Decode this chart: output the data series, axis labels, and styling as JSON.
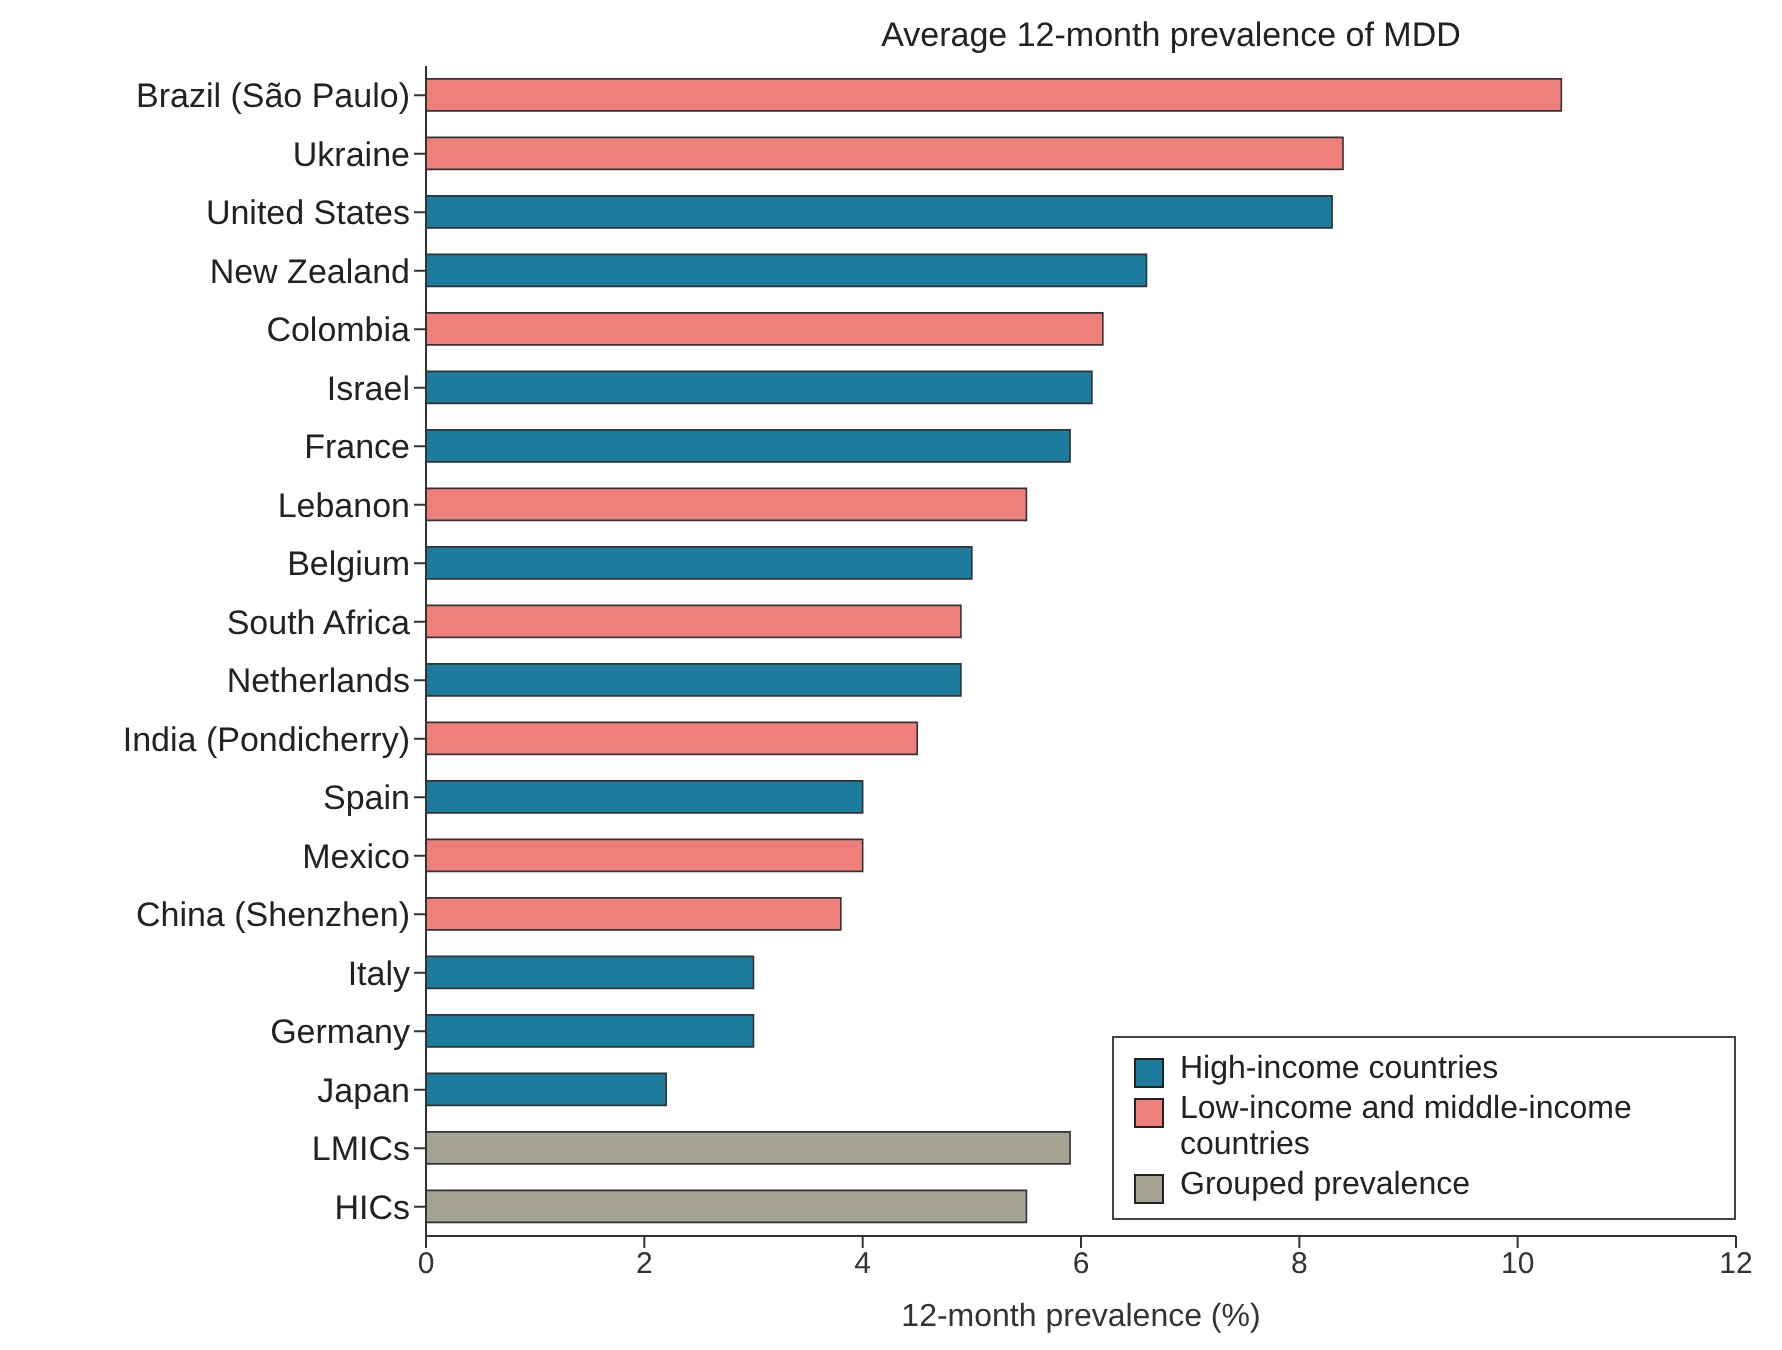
{
  "chart_data": {
    "type": "bar",
    "orientation": "horizontal",
    "title": "Average 12-month prevalence of MDD",
    "xlabel": "12-month prevalence (%)",
    "categories": [
      "Brazil (São Paulo)",
      "Ukraine",
      "United States",
      "New Zealand",
      "Colombia",
      "Israel",
      "France",
      "Lebanon",
      "Belgium",
      "South Africa",
      "Netherlands",
      "India (Pondicherry)",
      "Spain",
      "Mexico",
      "China (Shenzhen)",
      "Italy",
      "Germany",
      "Japan",
      "LMICs",
      "HICs"
    ],
    "series": [
      {
        "name": "High-income countries",
        "color": "#1b7c9e",
        "values": [
          null,
          null,
          8.3,
          6.6,
          null,
          6.1,
          5.9,
          null,
          5.0,
          null,
          4.9,
          null,
          4.0,
          null,
          null,
          3.0,
          3.0,
          2.2,
          null,
          null
        ]
      },
      {
        "name": "Low-income and middle-income countries",
        "color": "#ef7f7b",
        "values": [
          10.4,
          8.4,
          null,
          null,
          6.2,
          null,
          null,
          5.5,
          null,
          4.9,
          null,
          4.5,
          null,
          4.0,
          3.8,
          null,
          null,
          null,
          null,
          null
        ]
      },
      {
        "name": "Grouped prevalence",
        "color": "#a3a293",
        "values": [
          null,
          null,
          null,
          null,
          null,
          null,
          null,
          null,
          null,
          null,
          null,
          null,
          null,
          null,
          null,
          null,
          null,
          null,
          5.9,
          5.5
        ]
      }
    ],
    "xlim": [
      0,
      12
    ],
    "xticks": [
      0,
      2,
      4,
      6,
      8,
      10,
      12
    ],
    "grid": false,
    "legend": "bottom right"
  }
}
